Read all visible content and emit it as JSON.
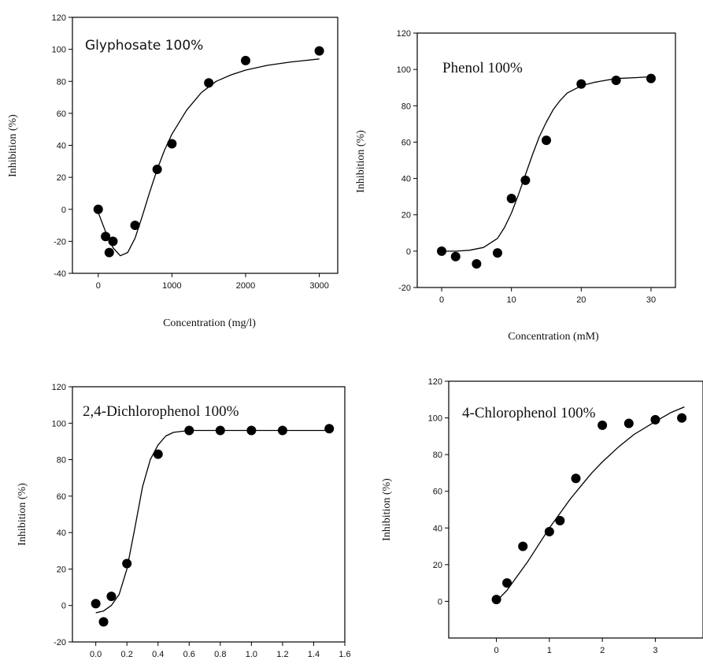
{
  "chart_data": [
    {
      "type": "scatter",
      "title": "Glyphosate 100%",
      "xlabel": "Concentration (mg/l)",
      "ylabel": "Inhibition (%)",
      "xlim": [
        -350,
        3250
      ],
      "ylim": [
        -40,
        120
      ],
      "xticks": [
        0,
        1000,
        2000,
        3000
      ],
      "xtick_labels": [
        "0",
        "1000",
        "2000",
        "3000"
      ],
      "yticks": [
        -40,
        -20,
        0,
        20,
        40,
        60,
        80,
        100,
        120
      ],
      "ytick_labels": [
        "-40",
        "-20",
        "0",
        "20",
        "40",
        "60",
        "80",
        "100",
        "120"
      ],
      "series": [
        {
          "x": [
            0,
            100,
            150,
            200,
            500,
            800,
            1000,
            1500,
            2000,
            3000
          ],
          "y": [
            0,
            -17,
            -27,
            -20,
            -10,
            25,
            41,
            79,
            93,
            99
          ]
        }
      ],
      "fit_curve": {
        "x": [
          0,
          100,
          200,
          300,
          400,
          500,
          600,
          700,
          800,
          900,
          1000,
          1200,
          1400,
          1600,
          1800,
          2000,
          2300,
          2600,
          3000
        ],
        "y": [
          -2,
          -14,
          -24,
          -29,
          -27,
          -18,
          -4,
          11,
          25,
          37,
          47,
          62,
          73,
          80,
          84,
          87,
          90,
          92,
          94
        ]
      },
      "grid": false,
      "legend": "none"
    },
    {
      "type": "scatter",
      "title": "Phenol 100%",
      "xlabel": "Concentration (mM)",
      "ylabel": "Inhibition (%)",
      "xlim": [
        -3.5,
        33.5
      ],
      "ylim": [
        -20,
        120
      ],
      "xticks": [
        0,
        10,
        20,
        30
      ],
      "xtick_labels": [
        "0",
        "10",
        "20",
        "30"
      ],
      "yticks": [
        -20,
        0,
        20,
        40,
        60,
        80,
        100,
        120
      ],
      "ytick_labels": [
        "-20",
        "0",
        "20",
        "40",
        "60",
        "80",
        "100",
        "120"
      ],
      "series": [
        {
          "x": [
            0,
            2,
            5,
            8,
            10,
            12,
            15,
            20,
            25,
            30
          ],
          "y": [
            0,
            -3,
            -7,
            -1,
            29,
            39,
            61,
            92,
            94,
            95
          ]
        }
      ],
      "fit_curve": {
        "x": [
          0,
          2,
          4,
          6,
          8,
          9,
          10,
          11,
          12,
          13,
          14,
          15,
          16,
          17,
          18,
          20,
          22,
          25,
          28,
          30
        ],
        "y": [
          0,
          0,
          0.5,
          2,
          7,
          13,
          21,
          31,
          42,
          53,
          63,
          71,
          78,
          83,
          87,
          91,
          93,
          95,
          95.5,
          96
        ]
      },
      "grid": false,
      "legend": "none"
    },
    {
      "type": "scatter",
      "title": "2,4-Dichlorophenol 100%",
      "xlabel": "",
      "ylabel": "Inhibition (%)",
      "xlim": [
        -0.15,
        1.6
      ],
      "ylim": [
        -20,
        120
      ],
      "xticks": [
        0.0,
        0.2,
        0.4,
        0.6,
        0.8,
        1.0,
        1.2,
        1.4,
        1.6
      ],
      "xtick_labels": [
        "0.0",
        "0.2",
        "0.4",
        "0.6",
        "0.8",
        "1.0",
        "1.2",
        "1.4",
        "1.6"
      ],
      "yticks": [
        -20,
        0,
        20,
        40,
        60,
        80,
        100,
        120
      ],
      "ytick_labels": [
        "-20",
        "0",
        "20",
        "40",
        "60",
        "80",
        "100",
        "120"
      ],
      "series": [
        {
          "x": [
            0.0,
            0.05,
            0.1,
            0.2,
            0.4,
            0.6,
            0.8,
            1.0,
            1.2,
            1.5
          ],
          "y": [
            1,
            -9,
            5,
            23,
            83,
            96,
            96,
            96,
            96,
            97
          ]
        }
      ],
      "fit_curve": {
        "x": [
          0.0,
          0.05,
          0.1,
          0.15,
          0.2,
          0.25,
          0.3,
          0.35,
          0.4,
          0.45,
          0.5,
          0.6,
          0.8,
          1.0,
          1.2,
          1.5
        ],
        "y": [
          -4,
          -3,
          0,
          6,
          20,
          42,
          65,
          80,
          88,
          93,
          95,
          96,
          96,
          96,
          96,
          96
        ]
      },
      "grid": false,
      "legend": "none"
    },
    {
      "type": "scatter",
      "title": "4-Chlorophenol 100%",
      "xlabel": "",
      "ylabel": "Inhibition (%)",
      "xlim": [
        -0.9,
        3.9
      ],
      "ylim": [
        -20,
        120
      ],
      "xticks": [
        0,
        1,
        2,
        3
      ],
      "xtick_labels": [
        "0",
        "1",
        "2",
        "3"
      ],
      "yticks": [
        0,
        20,
        40,
        60,
        80,
        100,
        120
      ],
      "ytick_labels": [
        "0",
        "20",
        "40",
        "60",
        "80",
        "100",
        "120"
      ],
      "series": [
        {
          "x": [
            0,
            0.2,
            0.5,
            1.0,
            1.2,
            1.5,
            2.0,
            2.5,
            3.0,
            3.5
          ],
          "y": [
            1,
            10,
            30,
            38,
            44,
            67,
            96,
            97,
            99,
            100
          ]
        }
      ],
      "fit_curve": {
        "x": [
          0,
          0.2,
          0.4,
          0.6,
          0.8,
          1.0,
          1.2,
          1.4,
          1.6,
          1.8,
          2.0,
          2.3,
          2.6,
          3.0,
          3.3,
          3.55
        ],
        "y": [
          0,
          6,
          14,
          22,
          31,
          40,
          48,
          56,
          63,
          70,
          76,
          84,
          91,
          98,
          103,
          106
        ]
      },
      "grid": false,
      "legend": "none"
    }
  ]
}
